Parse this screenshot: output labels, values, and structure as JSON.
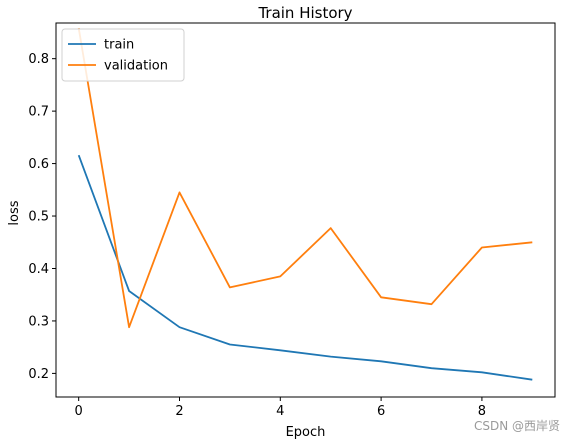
{
  "chart_data": {
    "type": "line",
    "title": "Train History",
    "xlabel": "Epoch",
    "ylabel": "loss",
    "xlim": [
      -0.45,
      9.45
    ],
    "ylim": [
      0.155,
      0.868
    ],
    "xticks": [
      0,
      2,
      4,
      6,
      8
    ],
    "xtick_labels": [
      "0",
      "2",
      "4",
      "6",
      "8"
    ],
    "yticks": [
      0.2,
      0.3,
      0.4,
      0.5,
      0.6,
      0.7,
      0.8
    ],
    "ytick_labels": [
      "0.2",
      "0.3",
      "0.4",
      "0.5",
      "0.6",
      "0.7",
      "0.8"
    ],
    "grid": false,
    "legend_position": "top-left",
    "x": [
      0,
      1,
      2,
      3,
      4,
      5,
      6,
      7,
      8,
      9
    ],
    "series": [
      {
        "name": "train",
        "color": "#1f77b4",
        "values": [
          0.616,
          0.357,
          0.288,
          0.255,
          0.244,
          0.232,
          0.223,
          0.21,
          0.202,
          0.188
        ]
      },
      {
        "name": "validation",
        "color": "#ff7f0e",
        "values": [
          0.858,
          0.288,
          0.545,
          0.364,
          0.385,
          0.477,
          0.345,
          0.332,
          0.44,
          0.45
        ]
      }
    ]
  },
  "watermark": "CSDN @西岸贤"
}
